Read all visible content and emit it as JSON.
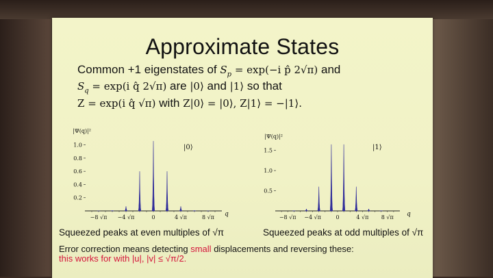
{
  "title": "Approximate States",
  "text": {
    "line1_a": "Common +1 eigenstates of",
    "line1_b": "S",
    "line1_sub": "p",
    "line1_c": "= exp(−i p̂ 2√π)",
    "line1_d": "and",
    "line2_a": "S",
    "line2_sub": "q",
    "line2_b": "= exp(i q̂ 2√π)",
    "line2_c": "are",
    "line2_d": "|0⟩",
    "line2_e": "and",
    "line2_f": "|1⟩",
    "line2_g": "so that",
    "line3_a": "Z = exp(i q̂ √π)",
    "line3_b": "with",
    "line3_c": "Z|0⟩ = |0⟩, Z|1⟩ = −|1⟩."
  },
  "plot_left": {
    "ylabel": "|Ψ(q)|²",
    "state_label": "|0⟩",
    "yticks": [
      "1.0",
      "0.8",
      "0.6",
      "0.4",
      "0.2"
    ],
    "xticks": [
      "−8 √π",
      "−4 √π",
      "0",
      "4 √π",
      "8 √π"
    ],
    "xlabel": "q",
    "caption": "Squeezed peaks at even multiples of √π"
  },
  "plot_right": {
    "ylabel": "|Ψ(q)|²",
    "state_label": "|1⟩",
    "yticks": [
      "1.5",
      "1.0",
      "0.5"
    ],
    "xticks": [
      "−8 √π",
      "−4 √π",
      "0",
      "4 √π",
      "8 √π"
    ],
    "xlabel": "q",
    "caption": "Squeezed peaks at odd multiples of √π"
  },
  "chart_data": [
    {
      "type": "line",
      "ylabel": "|Ψ(q)|²",
      "xlabel": "q",
      "state": "|0⟩",
      "ylim": [
        0,
        1.1
      ],
      "peaks_x": [
        -8,
        -6,
        -4,
        -2,
        0,
        2,
        4,
        6,
        8
      ],
      "peaks_y": [
        0.0,
        0.005,
        0.07,
        0.6,
        1.06,
        0.6,
        0.07,
        0.005,
        0.0
      ]
    },
    {
      "type": "line",
      "ylabel": "|Ψ(q)|²",
      "xlabel": "q",
      "state": "|1⟩",
      "ylim": [
        0,
        1.8
      ],
      "peaks_x": [
        -7,
        -5,
        -3,
        -1,
        1,
        3,
        5,
        7
      ],
      "peaks_y": [
        0.005,
        0.05,
        0.6,
        1.65,
        1.65,
        0.6,
        0.05,
        0.005
      ]
    }
  ],
  "error": {
    "line1_a": "Error correction means detecting",
    "line1_red": "small",
    "line1_b": "displacements and reversing these:",
    "line2": "this works for with |u|, |v| ≤ √π/2."
  }
}
